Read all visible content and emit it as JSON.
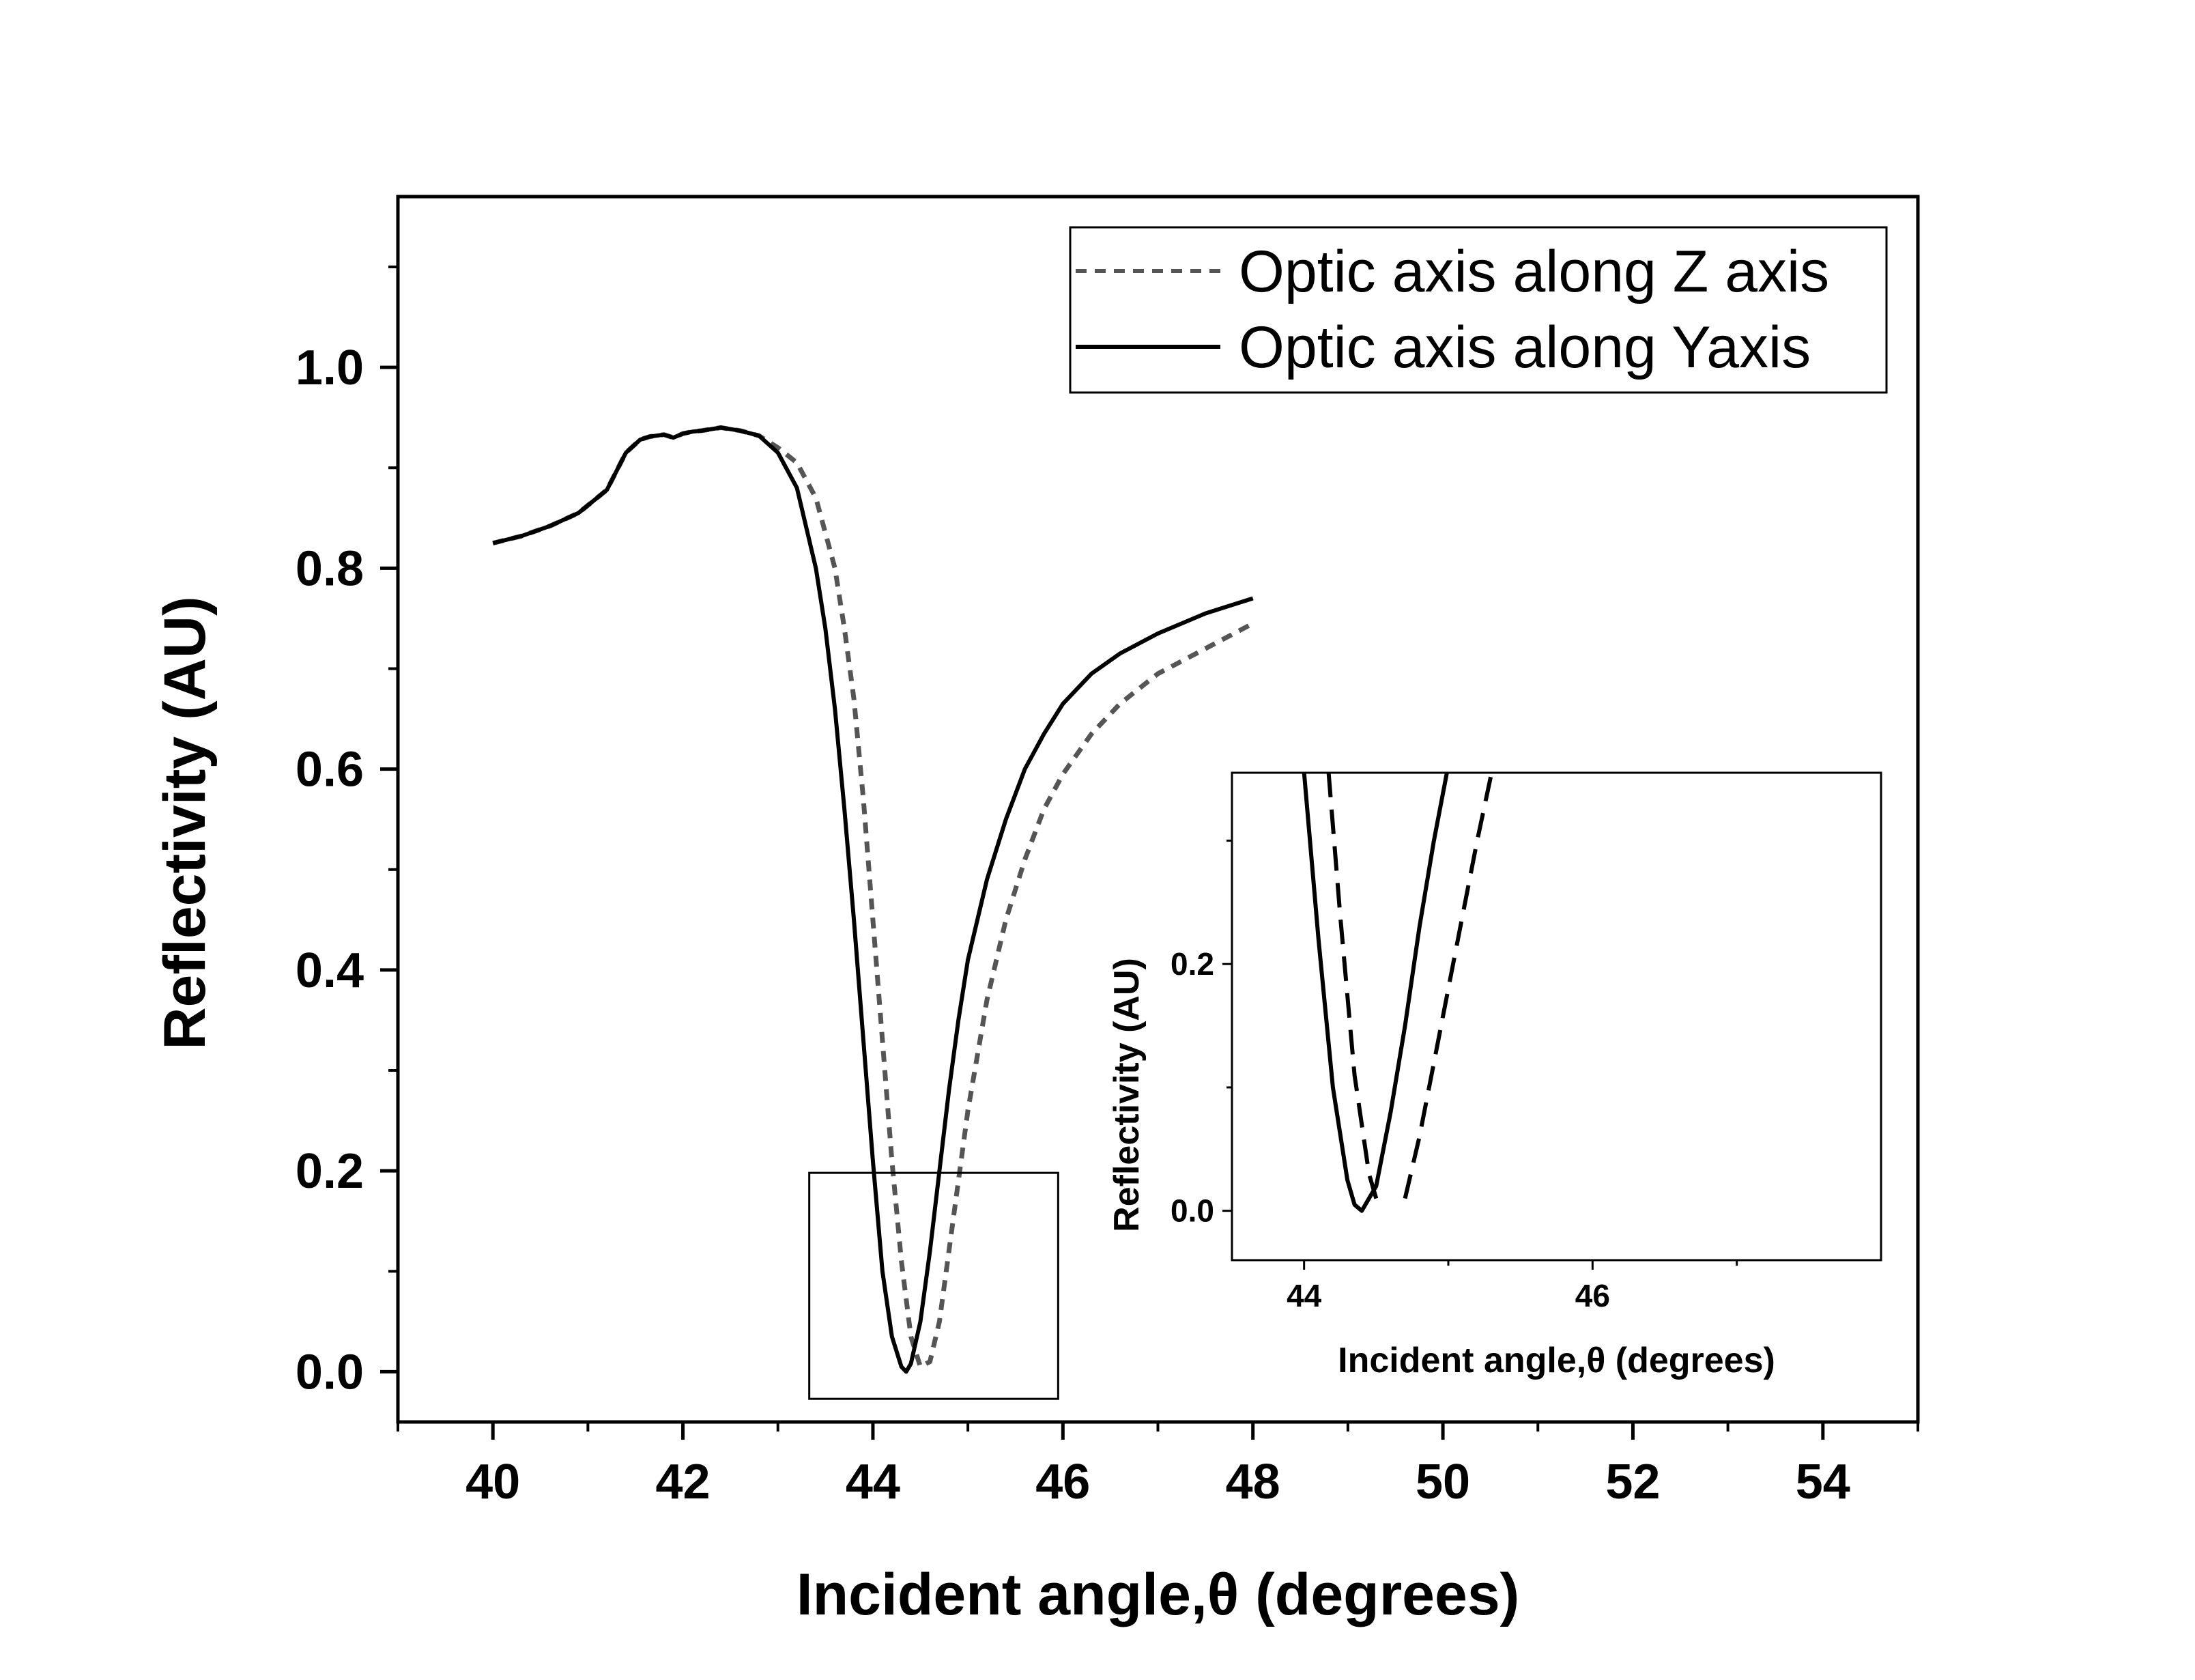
{
  "chart_data": [
    {
      "type": "line",
      "xlabel": "Incident angle,θ (degrees)",
      "ylabel": "Reflectivity (AU)",
      "xlim": [
        39,
        55
      ],
      "ylim": [
        -0.05,
        1.17
      ],
      "xticks": [
        "40",
        "42",
        "44",
        "46",
        "48",
        "50",
        "52",
        "54"
      ],
      "yticks": [
        "0.0",
        "0.2",
        "0.4",
        "0.6",
        "0.8",
        "1.0"
      ],
      "xtick_values": [
        40,
        42,
        44,
        46,
        48,
        50,
        52,
        54
      ],
      "ytick_values": [
        0.0,
        0.2,
        0.4,
        0.6,
        0.8,
        1.0
      ],
      "legend": {
        "position": "top-right"
      },
      "series": [
        {
          "name": "Optic axis along Z axis",
          "style": "dashed",
          "color": "#555555",
          "x": [
            40.0,
            40.3,
            40.6,
            40.9,
            41.2,
            41.4,
            41.55,
            41.65,
            41.8,
            41.9,
            42.0,
            42.1,
            42.2,
            42.4,
            42.6,
            42.8,
            43.0,
            43.2,
            43.4,
            43.6,
            43.7,
            43.8,
            43.9,
            44.0,
            44.1,
            44.2,
            44.3,
            44.4,
            44.5,
            44.6,
            44.7,
            44.8,
            44.9,
            45.0,
            45.2,
            45.4,
            45.6,
            45.8,
            46.0,
            46.3,
            46.6,
            47.0,
            47.5,
            48.0
          ],
          "y": [
            0.825,
            0.832,
            0.842,
            0.855,
            0.878,
            0.915,
            0.928,
            0.931,
            0.933,
            0.93,
            0.934,
            0.936,
            0.937,
            0.94,
            0.937,
            0.932,
            0.92,
            0.905,
            0.87,
            0.8,
            0.74,
            0.67,
            0.57,
            0.45,
            0.33,
            0.21,
            0.11,
            0.035,
            0.005,
            0.01,
            0.05,
            0.12,
            0.19,
            0.26,
            0.37,
            0.45,
            0.51,
            0.56,
            0.595,
            0.635,
            0.665,
            0.695,
            0.72,
            0.745
          ]
        },
        {
          "name": "Optic axis along Yaxis",
          "style": "solid",
          "color": "#000000",
          "x": [
            40.0,
            40.3,
            40.6,
            40.9,
            41.2,
            41.4,
            41.55,
            41.65,
            41.8,
            41.9,
            42.0,
            42.1,
            42.2,
            42.4,
            42.6,
            42.8,
            43.0,
            43.2,
            43.4,
            43.5,
            43.6,
            43.7,
            43.8,
            43.9,
            44.0,
            44.1,
            44.2,
            44.3,
            44.35,
            44.4,
            44.5,
            44.6,
            44.7,
            44.8,
            44.9,
            45.0,
            45.2,
            45.4,
            45.6,
            45.8,
            46.0,
            46.3,
            46.6,
            47.0,
            47.5,
            48.0
          ],
          "y": [
            0.825,
            0.832,
            0.842,
            0.855,
            0.878,
            0.915,
            0.928,
            0.931,
            0.933,
            0.93,
            0.934,
            0.936,
            0.937,
            0.94,
            0.937,
            0.932,
            0.915,
            0.88,
            0.8,
            0.74,
            0.66,
            0.56,
            0.45,
            0.33,
            0.21,
            0.1,
            0.035,
            0.005,
            0.0,
            0.008,
            0.05,
            0.12,
            0.2,
            0.28,
            0.35,
            0.41,
            0.49,
            0.55,
            0.6,
            0.635,
            0.665,
            0.695,
            0.715,
            0.735,
            0.755,
            0.77
          ]
        }
      ]
    },
    {
      "type": "line",
      "xlabel": "Incident angle,θ (degrees)",
      "ylabel": "Reflectivity (AU)",
      "xlim": [
        43.5,
        48.0
      ],
      "ylim": [
        -0.04,
        0.355
      ],
      "xticks": [
        "44",
        "46"
      ],
      "yticks": [
        "0.0",
        "0.2"
      ],
      "xtick_values": [
        44,
        46
      ],
      "ytick_values": [
        0.0,
        0.2
      ],
      "series": [
        {
          "style": "dashed",
          "color": "#000000",
          "x": [
            44.17,
            44.25,
            44.35,
            44.45,
            44.5
          ],
          "y": [
            0.355,
            0.24,
            0.11,
            0.03,
            0.01
          ]
        },
        {
          "style": "dashed",
          "color": "#000000",
          "x": [
            44.7,
            44.8,
            44.9,
            45.0,
            45.1,
            45.2,
            45.3
          ],
          "y": [
            0.01,
            0.06,
            0.12,
            0.18,
            0.24,
            0.3,
            0.355
          ]
        },
        {
          "style": "solid",
          "color": "#000000",
          "x": [
            44.0,
            44.1,
            44.2,
            44.3,
            44.35,
            44.4,
            44.5,
            44.6,
            44.7,
            44.8,
            44.9,
            44.99
          ],
          "y": [
            0.355,
            0.22,
            0.1,
            0.025,
            0.005,
            0.0,
            0.02,
            0.08,
            0.15,
            0.23,
            0.3,
            0.355
          ]
        }
      ]
    }
  ]
}
